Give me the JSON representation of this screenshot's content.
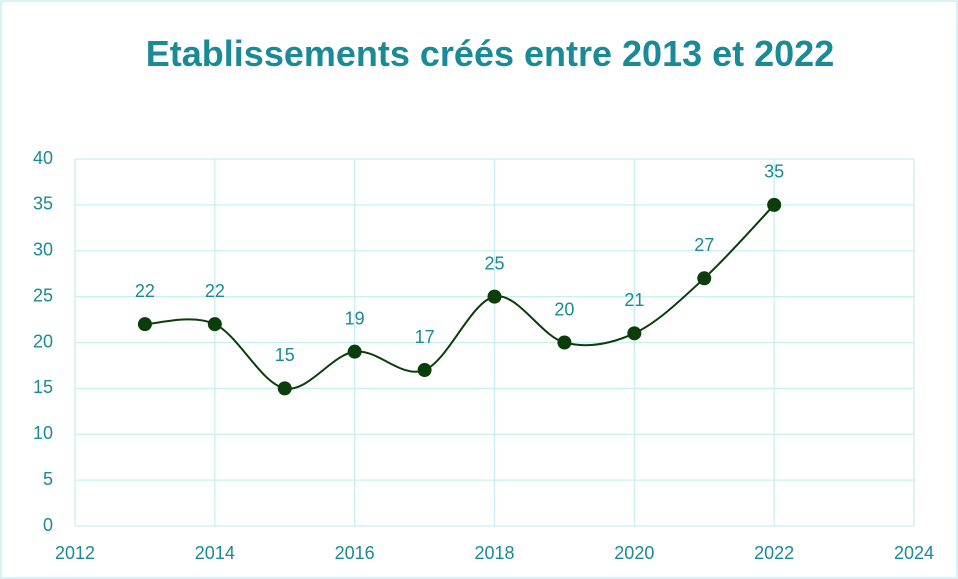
{
  "chart_data": {
    "type": "line",
    "title": "Etablissements créés entre 2013 et 2022",
    "x": [
      2013,
      2014,
      2015,
      2016,
      2017,
      2018,
      2019,
      2020,
      2021,
      2022
    ],
    "series": [
      {
        "name": "Etablissements",
        "color": "#0b3d0b",
        "values": [
          22,
          22,
          15,
          19,
          17,
          25,
          20,
          21,
          27,
          35
        ]
      }
    ],
    "xlim": [
      2012,
      2024
    ],
    "xticks": [
      2012,
      2014,
      2016,
      2018,
      2020,
      2022,
      2024
    ],
    "ylim": [
      0,
      40
    ],
    "yticks": [
      0,
      5,
      10,
      15,
      20,
      25,
      30,
      35,
      40
    ],
    "grid": true,
    "smooth": true,
    "data_labels": true
  }
}
